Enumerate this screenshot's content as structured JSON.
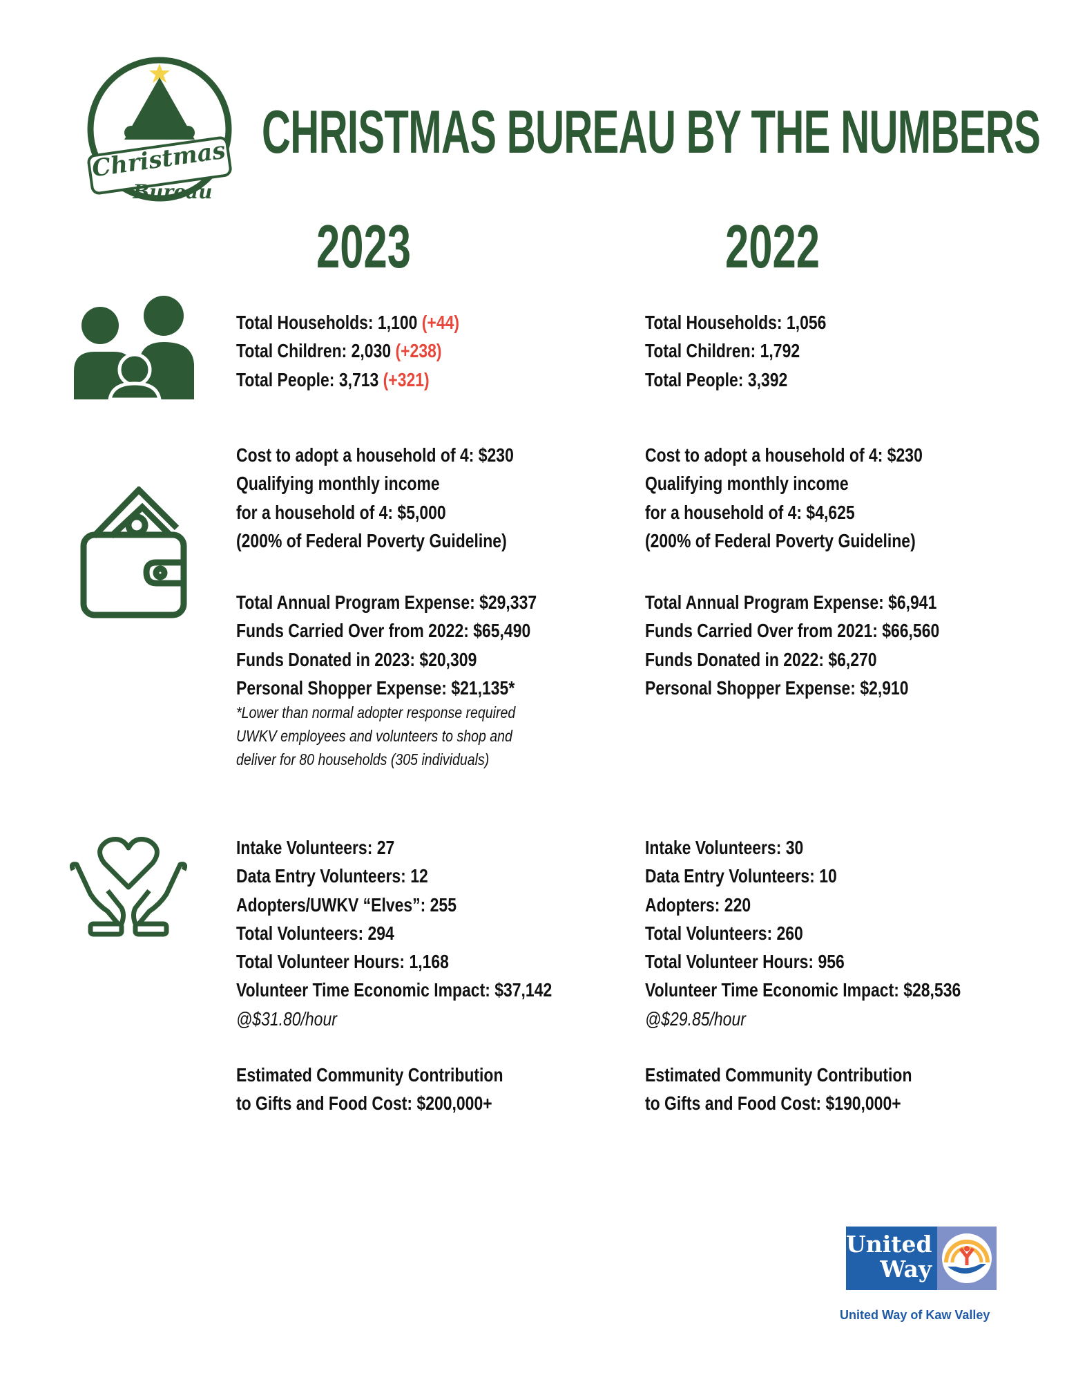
{
  "header": {
    "title": "CHRISTMAS BUREAU BY THE NUMBERS",
    "logo_text": [
      "Christmas",
      "Bureau"
    ]
  },
  "colors": {
    "green": "#2d5a35",
    "red": "#e8473b",
    "uw_blue": "#2160ab"
  },
  "columns": [
    {
      "year": "2023",
      "people": [
        {
          "text": "Total Households: 1,100 ",
          "delta": "(+44)"
        },
        {
          "text": "Total Children: 2,030 ",
          "delta": "(+238)"
        },
        {
          "text": "Total People: 3,713 ",
          "delta": "(+321)"
        }
      ],
      "cost": [
        "Cost to adopt a household of 4: $230",
        "Qualifying monthly income",
        "for a household of 4: $5,000",
        "(200% of Federal Poverty Guideline)"
      ],
      "funds": [
        "Total Annual Program Expense: $29,337",
        "Funds Carried Over from 2022: $65,490",
        "Funds Donated in 2023: $20,309",
        "Personal Shopper Expense: $21,135*"
      ],
      "note": [
        "*Lower than normal adopter response required",
        "UWKV employees and volunteers to shop and",
        "deliver for 80 households (305 individuals)"
      ],
      "volunteers": [
        "Intake Volunteers: 27",
        "Data Entry Volunteers: 12",
        "Adopters/UWKV “Elves”: 255",
        "Total Volunteers: 294",
        "Total Volunteer Hours: 1,168",
        "Volunteer Time Economic Impact: $37,142"
      ],
      "rate": "@$31.80/hour",
      "community": [
        "Estimated Community Contribution",
        "to Gifts and Food Cost: $200,000+"
      ]
    },
    {
      "year": "2022",
      "people": [
        {
          "text": "Total Households: 1,056"
        },
        {
          "text": "Total Children: 1,792"
        },
        {
          "text": "Total People: 3,392"
        }
      ],
      "cost": [
        "Cost to adopt a household of 4: $230",
        "Qualifying monthly income",
        "for a household of 4: $4,625",
        "(200% of Federal Poverty Guideline)"
      ],
      "funds": [
        "Total Annual Program Expense: $6,941",
        "Funds Carried Over from 2021: $66,560",
        "Funds Donated in 2022: $6,270",
        "Personal Shopper Expense: $2,910"
      ],
      "volunteers": [
        "Intake Volunteers: 30",
        "Data Entry Volunteers: 10",
        "Adopters: 220",
        "Total Volunteers: 260",
        "Total Volunteer Hours: 956",
        "Volunteer Time Economic Impact: $28,536"
      ],
      "rate": "@$29.85/hour",
      "community": [
        "Estimated Community Contribution",
        "to Gifts and Food Cost: $190,000+"
      ]
    }
  ],
  "footer": {
    "logo_lines": [
      "United",
      "Way"
    ],
    "caption": "United Way of Kaw Valley"
  },
  "icons": [
    "christmas-bureau-logo",
    "family-icon",
    "wallet-icon",
    "heart-hands-icon",
    "united-way-logo"
  ]
}
